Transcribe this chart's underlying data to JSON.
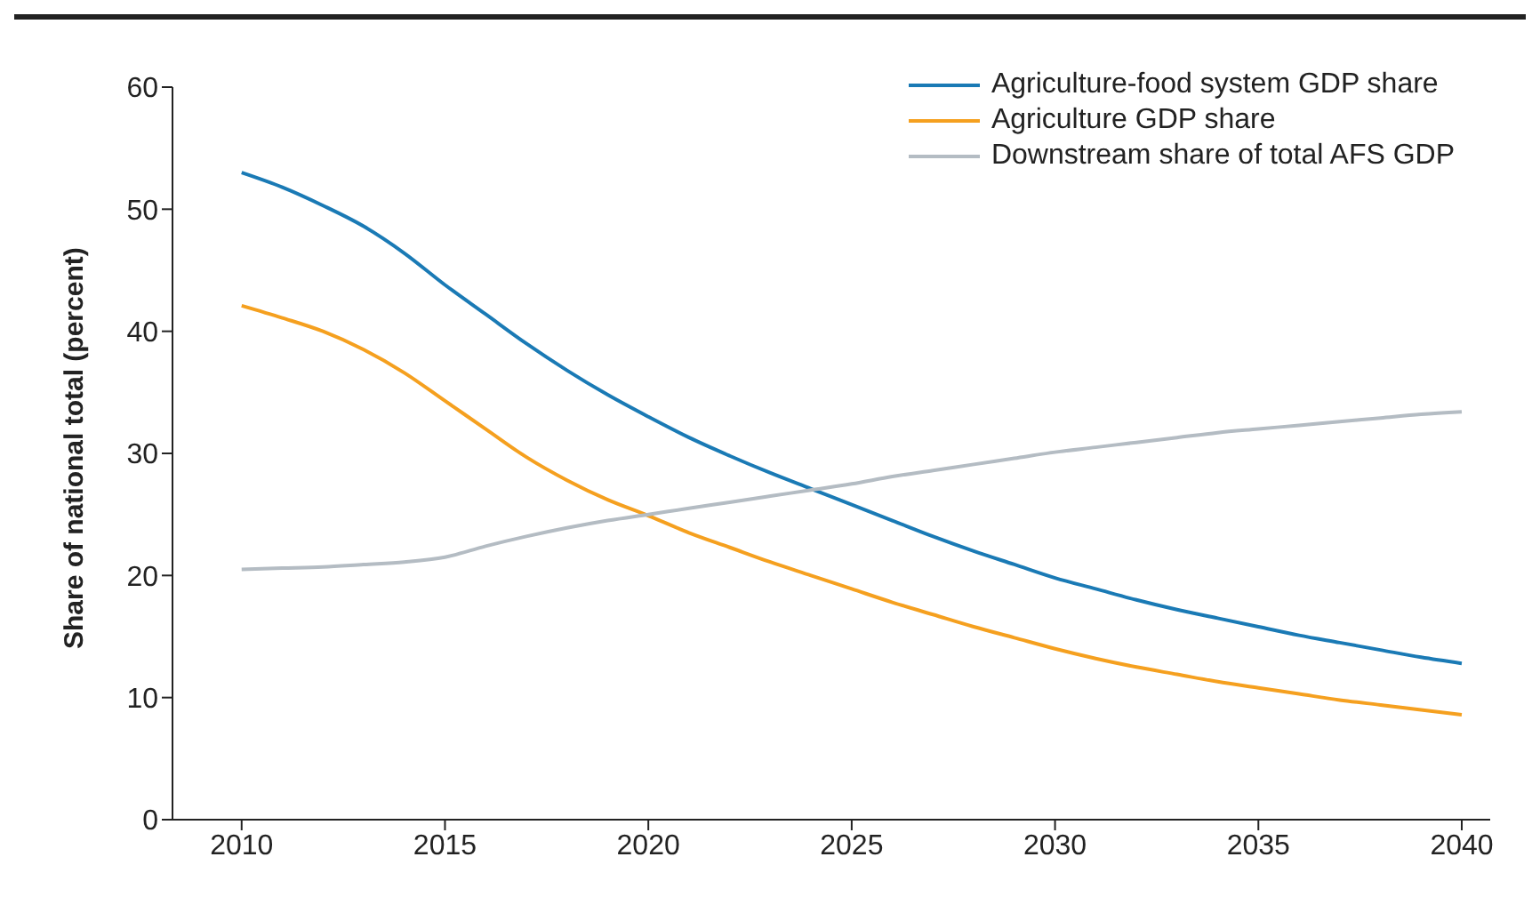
{
  "chart_data": {
    "type": "line",
    "ylabel": "Share of national total (percent)",
    "x": [
      2010,
      2011,
      2012,
      2013,
      2014,
      2015,
      2016,
      2017,
      2018,
      2019,
      2020,
      2021,
      2022,
      2023,
      2024,
      2025,
      2026,
      2027,
      2028,
      2029,
      2030,
      2031,
      2032,
      2033,
      2034,
      2035,
      2036,
      2037,
      2038,
      2039,
      2040
    ],
    "series": [
      {
        "name": "Agriculture-food system GDP share",
        "color": "#1a7ab5",
        "values": [
          53,
          51.8,
          50.3,
          48.6,
          46.4,
          43.8,
          41.4,
          39,
          36.8,
          34.8,
          33,
          31.3,
          29.8,
          28.4,
          27.1,
          25.8,
          24.5,
          23.2,
          22,
          20.9,
          19.8,
          18.9,
          18,
          17.2,
          16.5,
          15.8,
          15.1,
          14.5,
          13.9,
          13.3,
          12.8
        ]
      },
      {
        "name": "Agriculture GDP share",
        "color": "#f5a01f",
        "values": [
          42.1,
          41.1,
          40,
          38.5,
          36.6,
          34.3,
          32,
          29.7,
          27.8,
          26.2,
          24.9,
          23.5,
          22.3,
          21.1,
          20,
          18.9,
          17.8,
          16.8,
          15.8,
          14.9,
          14,
          13.2,
          12.5,
          11.9,
          11.3,
          10.8,
          10.3,
          9.8,
          9.4,
          9,
          8.6
        ]
      },
      {
        "name": "Downstream share of total AFS GDP",
        "color": "#b4bcc3",
        "values": [
          20.5,
          20.6,
          20.7,
          20.9,
          21.1,
          21.5,
          22.4,
          23.2,
          23.9,
          24.5,
          25,
          25.5,
          26,
          26.5,
          27,
          27.5,
          28.1,
          28.6,
          29.1,
          29.6,
          30.1,
          30.5,
          30.9,
          31.3,
          31.7,
          32,
          32.3,
          32.6,
          32.9,
          33.2,
          33.4
        ]
      }
    ],
    "xlim": [
      2008.3,
      2040.7
    ],
    "xticks": [
      2010,
      2015,
      2020,
      2025,
      2030,
      2035,
      2040
    ],
    "ylim": [
      0,
      60
    ],
    "yticks": [
      0,
      10,
      20,
      30,
      40,
      50,
      60
    ],
    "grid": false,
    "legend": "top right",
    "marker": "none",
    "line_style": "solid"
  }
}
